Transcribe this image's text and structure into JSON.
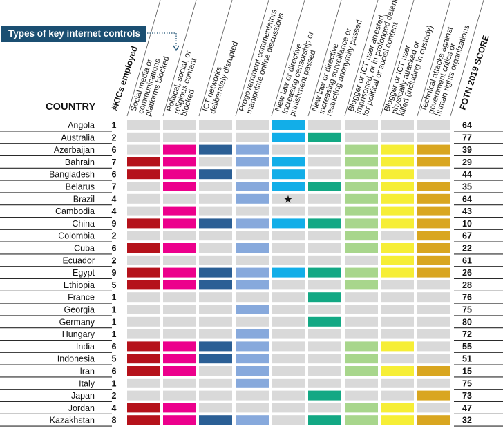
{
  "banner": {
    "label": "Types of key internet controls"
  },
  "header": {
    "country": "COUNTRY",
    "kics": "#KICs employed",
    "score": "FOTN 2019 SCORE"
  },
  "colors": {
    "empty": "#d9d9d9",
    "cat1": "#b5121b",
    "cat2": "#ec008c",
    "cat3": "#2b5f95",
    "cat4": "#87a9dc",
    "cat5": "#12aee8",
    "cat6": "#13a884",
    "cat7": "#a8d68c",
    "cat8": "#f6ee36",
    "cat9": "#d9a620",
    "banner": "#1b4f72",
    "text": "#111111"
  },
  "chart_data": {
    "type": "table",
    "title": "Types of key internet controls",
    "columns": [
      [
        "Social media or",
        "communications",
        "platforms blocked"
      ],
      [
        "Political, social, or",
        "religious content",
        "blocked"
      ],
      [
        "ICT networks",
        "deliberately disrupted"
      ],
      [
        "Progovernment commentators",
        "manipulate online discussions"
      ],
      [
        "New law or directive",
        "increasing censorship or",
        "punishment passed"
      ],
      [
        "New law or directive",
        "increasing surveillance or",
        "restricting anonymity passed"
      ],
      [
        "Blogger or ICT user arrested,",
        "imprisoned, or in prolonged detention",
        "for political or social content"
      ],
      [
        "Blogger or ICT user",
        "physically attacked or",
        "killed (including in custody)"
      ],
      [
        "Technical attacks against",
        "government critics or",
        "human rights organizations"
      ]
    ],
    "rows": [
      {
        "country": "Angola",
        "kics": 1,
        "score": 64,
        "cells": [
          0,
          0,
          0,
          0,
          1,
          0,
          0,
          0,
          0
        ]
      },
      {
        "country": "Australia",
        "kics": 2,
        "score": 77,
        "cells": [
          0,
          0,
          0,
          0,
          1,
          1,
          0,
          0,
          0
        ]
      },
      {
        "country": "Azerbaijan",
        "kics": 6,
        "score": 39,
        "cells": [
          0,
          1,
          1,
          1,
          0,
          0,
          1,
          1,
          1
        ]
      },
      {
        "country": "Bahrain",
        "kics": 7,
        "score": 29,
        "cells": [
          1,
          1,
          0,
          1,
          1,
          0,
          1,
          1,
          1
        ]
      },
      {
        "country": "Bangladesh",
        "kics": 6,
        "score": 44,
        "cells": [
          1,
          1,
          1,
          0,
          1,
          0,
          1,
          1,
          0
        ]
      },
      {
        "country": "Belarus",
        "kics": 7,
        "score": 35,
        "cells": [
          0,
          1,
          0,
          1,
          1,
          1,
          1,
          1,
          1
        ]
      },
      {
        "country": "Brazil",
        "kics": 4,
        "score": 64,
        "cells": [
          0,
          0,
          0,
          1,
          "star",
          0,
          1,
          1,
          1
        ]
      },
      {
        "country": "Cambodia",
        "kics": 4,
        "score": 43,
        "cells": [
          0,
          1,
          0,
          0,
          0,
          0,
          1,
          1,
          1
        ]
      },
      {
        "country": "China",
        "kics": 9,
        "score": 10,
        "cells": [
          1,
          1,
          1,
          1,
          1,
          1,
          1,
          1,
          1
        ]
      },
      {
        "country": "Colombia",
        "kics": 2,
        "score": 67,
        "cells": [
          0,
          0,
          0,
          0,
          0,
          0,
          1,
          0,
          1
        ]
      },
      {
        "country": "Cuba",
        "kics": 6,
        "score": 22,
        "cells": [
          1,
          1,
          0,
          1,
          0,
          0,
          1,
          1,
          1
        ]
      },
      {
        "country": "Ecuador",
        "kics": 2,
        "score": 61,
        "cells": [
          0,
          0,
          0,
          0,
          0,
          0,
          0,
          1,
          1
        ]
      },
      {
        "country": "Egypt",
        "kics": 9,
        "score": 26,
        "cells": [
          1,
          1,
          1,
          1,
          1,
          1,
          1,
          1,
          1
        ]
      },
      {
        "country": "Ethiopia",
        "kics": 5,
        "score": 28,
        "cells": [
          1,
          1,
          1,
          1,
          0,
          0,
          1,
          0,
          0
        ]
      },
      {
        "country": "France",
        "kics": 1,
        "score": 76,
        "cells": [
          0,
          0,
          0,
          0,
          0,
          1,
          0,
          0,
          0
        ]
      },
      {
        "country": "Georgia",
        "kics": 1,
        "score": 75,
        "cells": [
          0,
          0,
          0,
          1,
          0,
          0,
          0,
          0,
          0
        ]
      },
      {
        "country": "Germany",
        "kics": 1,
        "score": 80,
        "cells": [
          0,
          0,
          0,
          0,
          0,
          1,
          0,
          0,
          0
        ]
      },
      {
        "country": "Hungary",
        "kics": 1,
        "score": 72,
        "cells": [
          0,
          0,
          0,
          1,
          0,
          0,
          0,
          0,
          0
        ]
      },
      {
        "country": "India",
        "kics": 6,
        "score": 55,
        "cells": [
          1,
          1,
          1,
          1,
          0,
          0,
          1,
          1,
          0
        ]
      },
      {
        "country": "Indonesia",
        "kics": 5,
        "score": 51,
        "cells": [
          1,
          1,
          1,
          1,
          0,
          0,
          1,
          0,
          0
        ]
      },
      {
        "country": "Iran",
        "kics": 6,
        "score": 15,
        "cells": [
          1,
          1,
          0,
          1,
          0,
          0,
          1,
          1,
          1
        ]
      },
      {
        "country": "Italy",
        "kics": 1,
        "score": 75,
        "cells": [
          0,
          0,
          0,
          1,
          0,
          0,
          0,
          0,
          0
        ]
      },
      {
        "country": "Japan",
        "kics": 2,
        "score": 73,
        "cells": [
          0,
          0,
          0,
          0,
          0,
          1,
          0,
          0,
          1
        ]
      },
      {
        "country": "Jordan",
        "kics": 4,
        "score": 47,
        "cells": [
          1,
          1,
          0,
          0,
          0,
          0,
          1,
          1,
          0
        ]
      },
      {
        "country": "Kazakhstan",
        "kics": 8,
        "score": 32,
        "cells": [
          1,
          1,
          1,
          1,
          0,
          1,
          1,
          1,
          1
        ]
      }
    ]
  }
}
